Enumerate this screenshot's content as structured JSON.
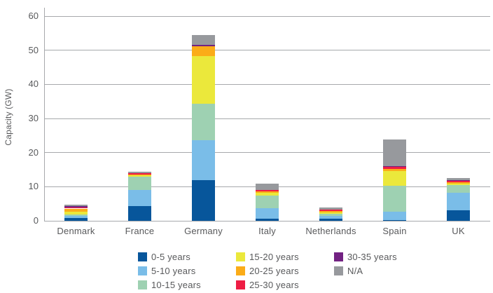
{
  "chart_data": {
    "type": "bar",
    "stacked": true,
    "title": "",
    "xlabel": "",
    "ylabel": "Capacity (GW)",
    "ylim": [
      0,
      60
    ],
    "yticks": [
      0,
      10,
      20,
      30,
      40,
      50,
      60
    ],
    "grid": true,
    "legend_position": "bottom",
    "categories": [
      "Denmark",
      "France",
      "Germany",
      "Italy",
      "Netherlands",
      "Spain",
      "UK"
    ],
    "series": [
      {
        "name": "0-5 years",
        "color": "#07569B",
        "values": [
          0.8,
          4.4,
          11.9,
          0.7,
          0.6,
          0.3,
          3.0
        ]
      },
      {
        "name": "5-10 years",
        "color": "#7ABDE8",
        "values": [
          0.7,
          4.6,
          11.7,
          3.1,
          0.9,
          2.4,
          5.3
        ]
      },
      {
        "name": "10-15 years",
        "color": "#9ED1B2",
        "values": [
          0.4,
          4.0,
          10.8,
          3.7,
          0.5,
          7.5,
          2.1
        ]
      },
      {
        "name": "15-20 years",
        "color": "#EBE83B",
        "values": [
          0.8,
          0.35,
          13.8,
          0.8,
          0.5,
          4.3,
          0.5
        ]
      },
      {
        "name": "20-25 years",
        "color": "#FBAC18",
        "values": [
          0.9,
          0.2,
          2.9,
          0.3,
          0.4,
          0.7,
          0.4
        ]
      },
      {
        "name": "25-30 years",
        "color": "#EE1D44",
        "values": [
          0.4,
          0.35,
          0.1,
          0.4,
          0.4,
          0.7,
          0.5
        ]
      },
      {
        "name": "30-35 years",
        "color": "#722282",
        "values": [
          0.3,
          0.05,
          0.3,
          0.05,
          0.05,
          0.05,
          0.1
        ]
      },
      {
        "name": "N/A",
        "color": "#97999D",
        "values": [
          0.4,
          0.5,
          3.0,
          1.8,
          0.5,
          7.9,
          0.55
        ]
      }
    ]
  },
  "colors": {
    "text": "#58595B",
    "grid": "#A7A9AC",
    "background": "#FFFFFF"
  }
}
